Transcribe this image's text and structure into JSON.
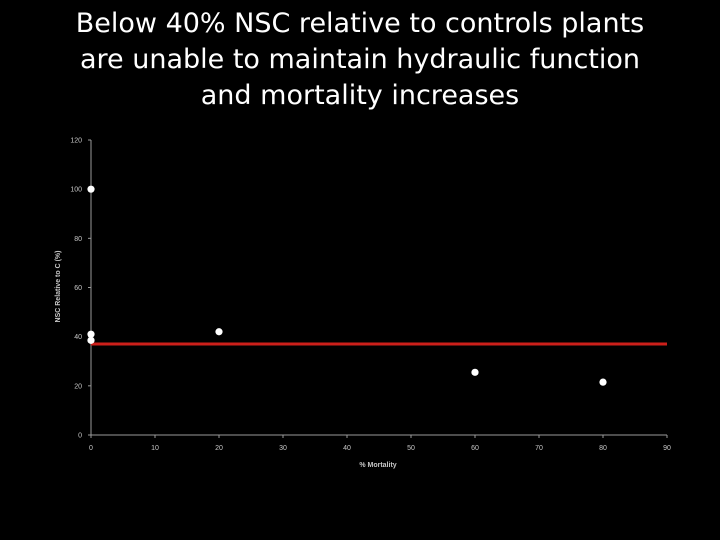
{
  "slide": {
    "title_lines": [
      "Below 40% NSC relative to controls plants",
      "are unable to maintain hydraulic function",
      "and mortality increases"
    ]
  },
  "chart_data": {
    "type": "scatter",
    "title": "",
    "xlabel": "% Mortality",
    "ylabel": "NSC Relative to C (%)",
    "xlim": [
      0,
      90
    ],
    "ylim": [
      0,
      120
    ],
    "xticks": [
      0,
      10,
      20,
      30,
      40,
      50,
      60,
      70,
      80,
      90
    ],
    "yticks": [
      0,
      20,
      40,
      60,
      80,
      100,
      120
    ],
    "grid": false,
    "legend": "none",
    "points": [
      {
        "x": 0,
        "y": 100
      },
      {
        "x": 0,
        "y": 41
      },
      {
        "x": 0,
        "y": 38.5
      },
      {
        "x": 20,
        "y": 42
      },
      {
        "x": 60,
        "y": 25.5
      },
      {
        "x": 80,
        "y": 21.5
      }
    ],
    "threshold_line": {
      "y": 37,
      "x_range": [
        0,
        90
      ],
      "color": "#cc1f1a"
    },
    "colors": {
      "background": "#000000",
      "axis": "#9a9a9a",
      "points": "#ffffff",
      "text": "#c8c8c8"
    }
  }
}
